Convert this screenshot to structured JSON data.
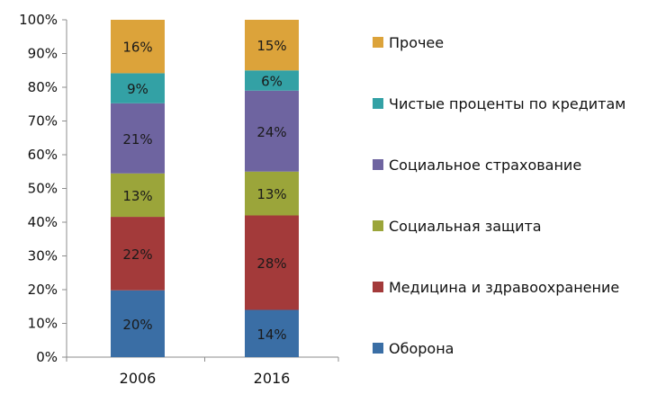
{
  "chart_data": {
    "type": "bar",
    "stacked": true,
    "percent_axis": true,
    "categories": [
      "2006",
      "2016"
    ],
    "series": [
      {
        "name": "Оборона",
        "color": "#3A6EA5",
        "values": [
          20,
          14
        ],
        "labels": [
          "20%",
          "14%"
        ]
      },
      {
        "name": "Медицина и здравоохранение",
        "color": "#A33A3A",
        "values": [
          22,
          28
        ],
        "labels": [
          "22%",
          "28%"
        ]
      },
      {
        "name": "Социальная защита",
        "color": "#9BA53A",
        "values": [
          13,
          13
        ],
        "labels": [
          "13%",
          "13%"
        ]
      },
      {
        "name": "Социальное страхование",
        "color": "#6E64A0",
        "values": [
          21,
          24
        ],
        "labels": [
          "21%",
          "24%"
        ]
      },
      {
        "name": "Чистые проценты по кредитам",
        "color": "#33A1A5",
        "values": [
          9,
          6
        ],
        "labels": [
          "9%",
          "6%"
        ]
      },
      {
        "name": "Прочее",
        "color": "#DCA33A",
        "values": [
          16,
          15
        ],
        "labels": [
          "16%",
          "15%"
        ]
      }
    ],
    "yticks": [
      "0%",
      "10%",
      "20%",
      "30%",
      "40%",
      "50%",
      "60%",
      "70%",
      "80%",
      "90%",
      "100%"
    ],
    "ylim": [
      0,
      100
    ],
    "grid": false,
    "legend_position": "right",
    "title": "",
    "xlabel": "",
    "ylabel": ""
  }
}
